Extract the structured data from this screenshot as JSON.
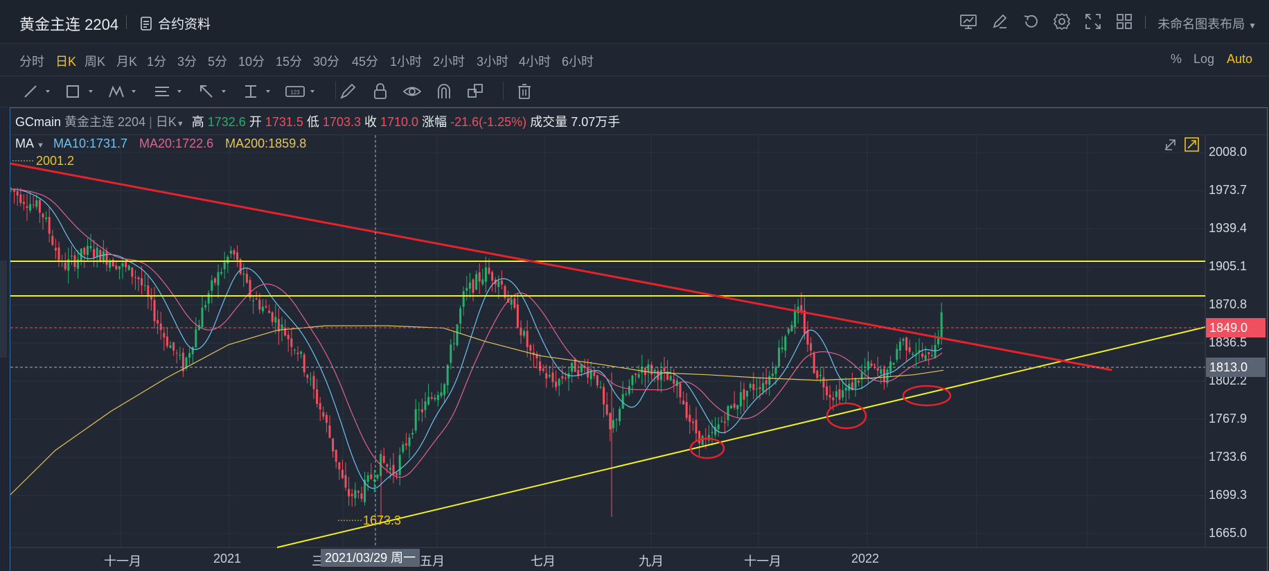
{
  "header": {
    "title": "黄金主连 2204",
    "contract_info": "合约资料",
    "layout_name": "未命名图表布局"
  },
  "periods": [
    "分时",
    "日K",
    "周K",
    "月K",
    "1分",
    "3分",
    "5分",
    "10分",
    "15分",
    "30分",
    "45分",
    "1小时",
    "2小时",
    "3小时",
    "4小时",
    "6小时"
  ],
  "active_period": "日K",
  "scales": [
    "%",
    "Log",
    "Auto"
  ],
  "active_scale": "Auto",
  "legend": {
    "symbol": "GCmain",
    "name": "黄金主连 2204",
    "period": "日K",
    "high_label": "高",
    "high": "1732.6",
    "open_label": "开",
    "open": "1731.5",
    "low_label": "低",
    "low": "1703.3",
    "close_label": "收",
    "close": "1710.0",
    "change_label": "涨幅",
    "change": "-21.6(-1.25%)",
    "volume_label": "成交量",
    "volume": "7.07万手"
  },
  "ma": {
    "label": "MA",
    "ma10": "MA10:1731.7",
    "ma20": "MA20:1722.6",
    "ma200": "MA200:1859.8"
  },
  "colors": {
    "up": "#26b06a",
    "down": "#ef4f5e",
    "ma10": "#6ec3f0",
    "ma20": "#e0628f",
    "ma200": "#e8c65a",
    "accent": "#f0c419",
    "trend_red": "#e8222a",
    "trend_yellow": "#f2f21d"
  },
  "chart_data": {
    "type": "candlestick",
    "y_ticks": [
      "2008.0",
      "1973.7",
      "1939.4",
      "1905.1",
      "1870.8",
      "1836.5",
      "1802.2",
      "1767.9",
      "1733.6",
      "1699.3",
      "1665.0"
    ],
    "x_ticks": [
      "十一月",
      "2021",
      "三",
      "五月",
      "七月",
      "九月",
      "十一月",
      "2022"
    ],
    "last_price": "1849.0",
    "crosshair_price": "1813.0",
    "crosshair_date": "2021/03/29 周一",
    "max_label": "2001.2",
    "min_label": "1673.3",
    "ylim": [
      1665.0,
      2008.0
    ]
  }
}
